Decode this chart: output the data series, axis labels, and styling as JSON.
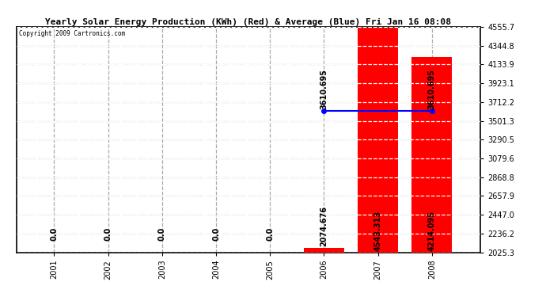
{
  "title": "Yearly Solar Energy Production (KWh) (Red) & Average (Blue) Fri Jan 16 08:08",
  "copyright": "Copyright 2009 Cartronics.com",
  "years": [
    2001,
    2002,
    2003,
    2004,
    2005,
    2006,
    2007,
    2008
  ],
  "values": [
    0.0,
    0.0,
    0.0,
    0.0,
    0.0,
    2074.676,
    4543.313,
    4214.095
  ],
  "average": 3610.695,
  "bar_color": "#FF0000",
  "avg_color": "#0000FF",
  "background_color": "#FFFFFF",
  "ymin": 2025.3,
  "ymax": 4555.7,
  "yticks": [
    2025.3,
    2236.2,
    2447.0,
    2657.9,
    2868.8,
    3079.6,
    3290.5,
    3501.3,
    3712.2,
    3923.1,
    4133.9,
    4344.8,
    4555.7
  ],
  "grid_color": "#AAAAAA",
  "figwidth": 6.9,
  "figheight": 3.75,
  "dpi": 100
}
